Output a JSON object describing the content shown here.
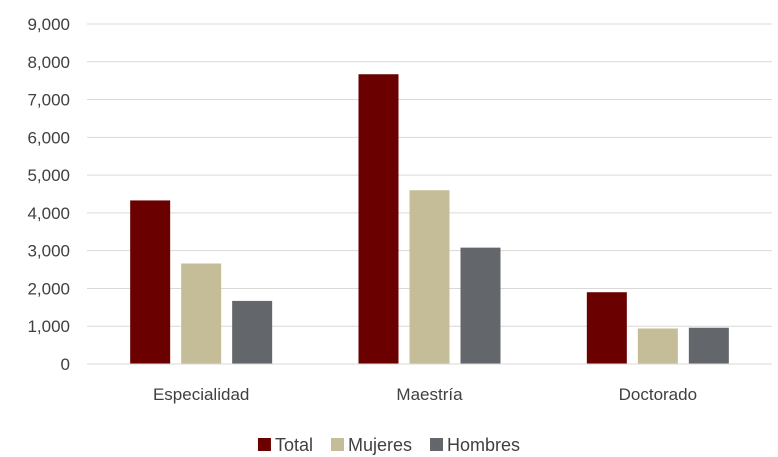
{
  "chart_data": {
    "type": "bar",
    "title": "",
    "xlabel": "",
    "ylabel": "",
    "categories": [
      "Especialidad",
      "Maestría",
      "Doctorado"
    ],
    "series": [
      {
        "name": "Total",
        "color": "#6b0000",
        "values": [
          4330,
          7670,
          1900
        ]
      },
      {
        "name": "Mujeres",
        "color": "#c4bd97",
        "values": [
          2660,
          4600,
          940
        ]
      },
      {
        "name": "Hombres",
        "color": "#63666a",
        "values": [
          1670,
          3080,
          960
        ]
      }
    ],
    "ylim": [
      0,
      9000
    ],
    "yticks": [
      "0",
      "1,000",
      "2,000",
      "3,000",
      "4,000",
      "5,000",
      "6,000",
      "7,000",
      "8,000",
      "9,000"
    ],
    "grid": true,
    "legend_position": "bottom"
  }
}
